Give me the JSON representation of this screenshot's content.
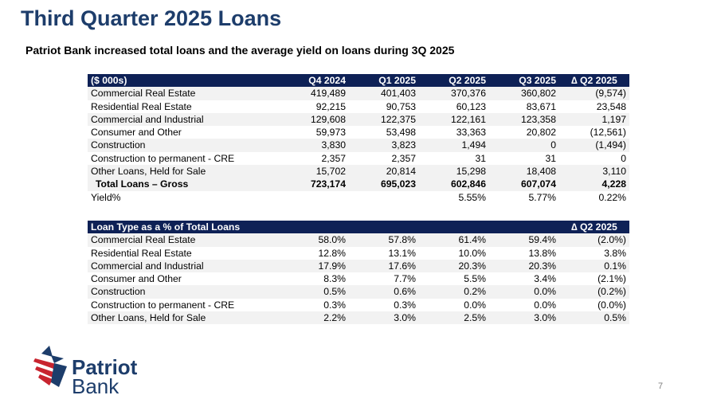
{
  "title": "Third Quarter 2025 Loans",
  "subtitle": "Patriot Bank increased total loans and the average yield on loans during 3Q 2025",
  "loans_table": {
    "headers": [
      "($ 000s)",
      "Q4 2024",
      "Q1 2025",
      "Q2 2025",
      "Q3 2025",
      "∆ Q2 2025"
    ],
    "rows": [
      [
        "Commercial Real Estate",
        "419,489",
        "401,403",
        "370,376",
        "360,802",
        "(9,574)"
      ],
      [
        "Residential Real Estate",
        "92,215",
        "90,753",
        "60,123",
        "83,671",
        "23,548"
      ],
      [
        "Commercial and Industrial",
        "129,608",
        "122,375",
        "122,161",
        "123,358",
        "1,197"
      ],
      [
        "Consumer and Other",
        "59,973",
        "53,498",
        "33,363",
        "20,802",
        "(12,561)"
      ],
      [
        "Construction",
        "3,830",
        "3,823",
        "1,494",
        "0",
        "(1,494)"
      ],
      [
        "Construction to permanent - CRE",
        "2,357",
        "2,357",
        "31",
        "31",
        "0"
      ],
      [
        "Other Loans, Held for Sale",
        "15,702",
        "20,814",
        "15,298",
        "18,408",
        "3,110"
      ]
    ],
    "total": [
      "Total Loans – Gross",
      "723,174",
      "695,023",
      "602,846",
      "607,074",
      "4,228"
    ],
    "yield": [
      "Yield%",
      "",
      "",
      "5.55%",
      "5.77%",
      "0.22%"
    ]
  },
  "pct_table": {
    "headers": [
      "Loan Type as a % of Total Loans",
      "",
      "",
      "",
      "",
      "∆ Q2 2025"
    ],
    "rows": [
      [
        "Commercial Real Estate",
        "58.0%",
        "57.8%",
        "61.4%",
        "59.4%",
        "(2.0%)"
      ],
      [
        "Residential Real Estate",
        "12.8%",
        "13.1%",
        "10.0%",
        "13.8%",
        "3.8%"
      ],
      [
        "Commercial and Industrial",
        "17.9%",
        "17.6%",
        "20.3%",
        "20.3%",
        "0.1%"
      ],
      [
        "Consumer and Other",
        "8.3%",
        "7.7%",
        "5.5%",
        "3.4%",
        "(2.1%)"
      ],
      [
        "Construction",
        "0.5%",
        "0.6%",
        "0.2%",
        "0.0%",
        "(0.2%)"
      ],
      [
        "Construction to permanent - CRE",
        "0.3%",
        "0.3%",
        "0.0%",
        "0.0%",
        "(0.0%)"
      ],
      [
        "Other Loans, Held for Sale",
        "2.2%",
        "3.0%",
        "2.5%",
        "3.0%",
        "0.5%"
      ]
    ]
  },
  "logo": {
    "line1": "Patriot",
    "line2": "Bank",
    "icon": "star-flag-icon"
  },
  "page_number": "7",
  "colors": {
    "title": "#1d3d6b",
    "header_bg": "#0e2156",
    "logo_red": "#c8242f",
    "logo_blue": "#1d3d6b"
  }
}
